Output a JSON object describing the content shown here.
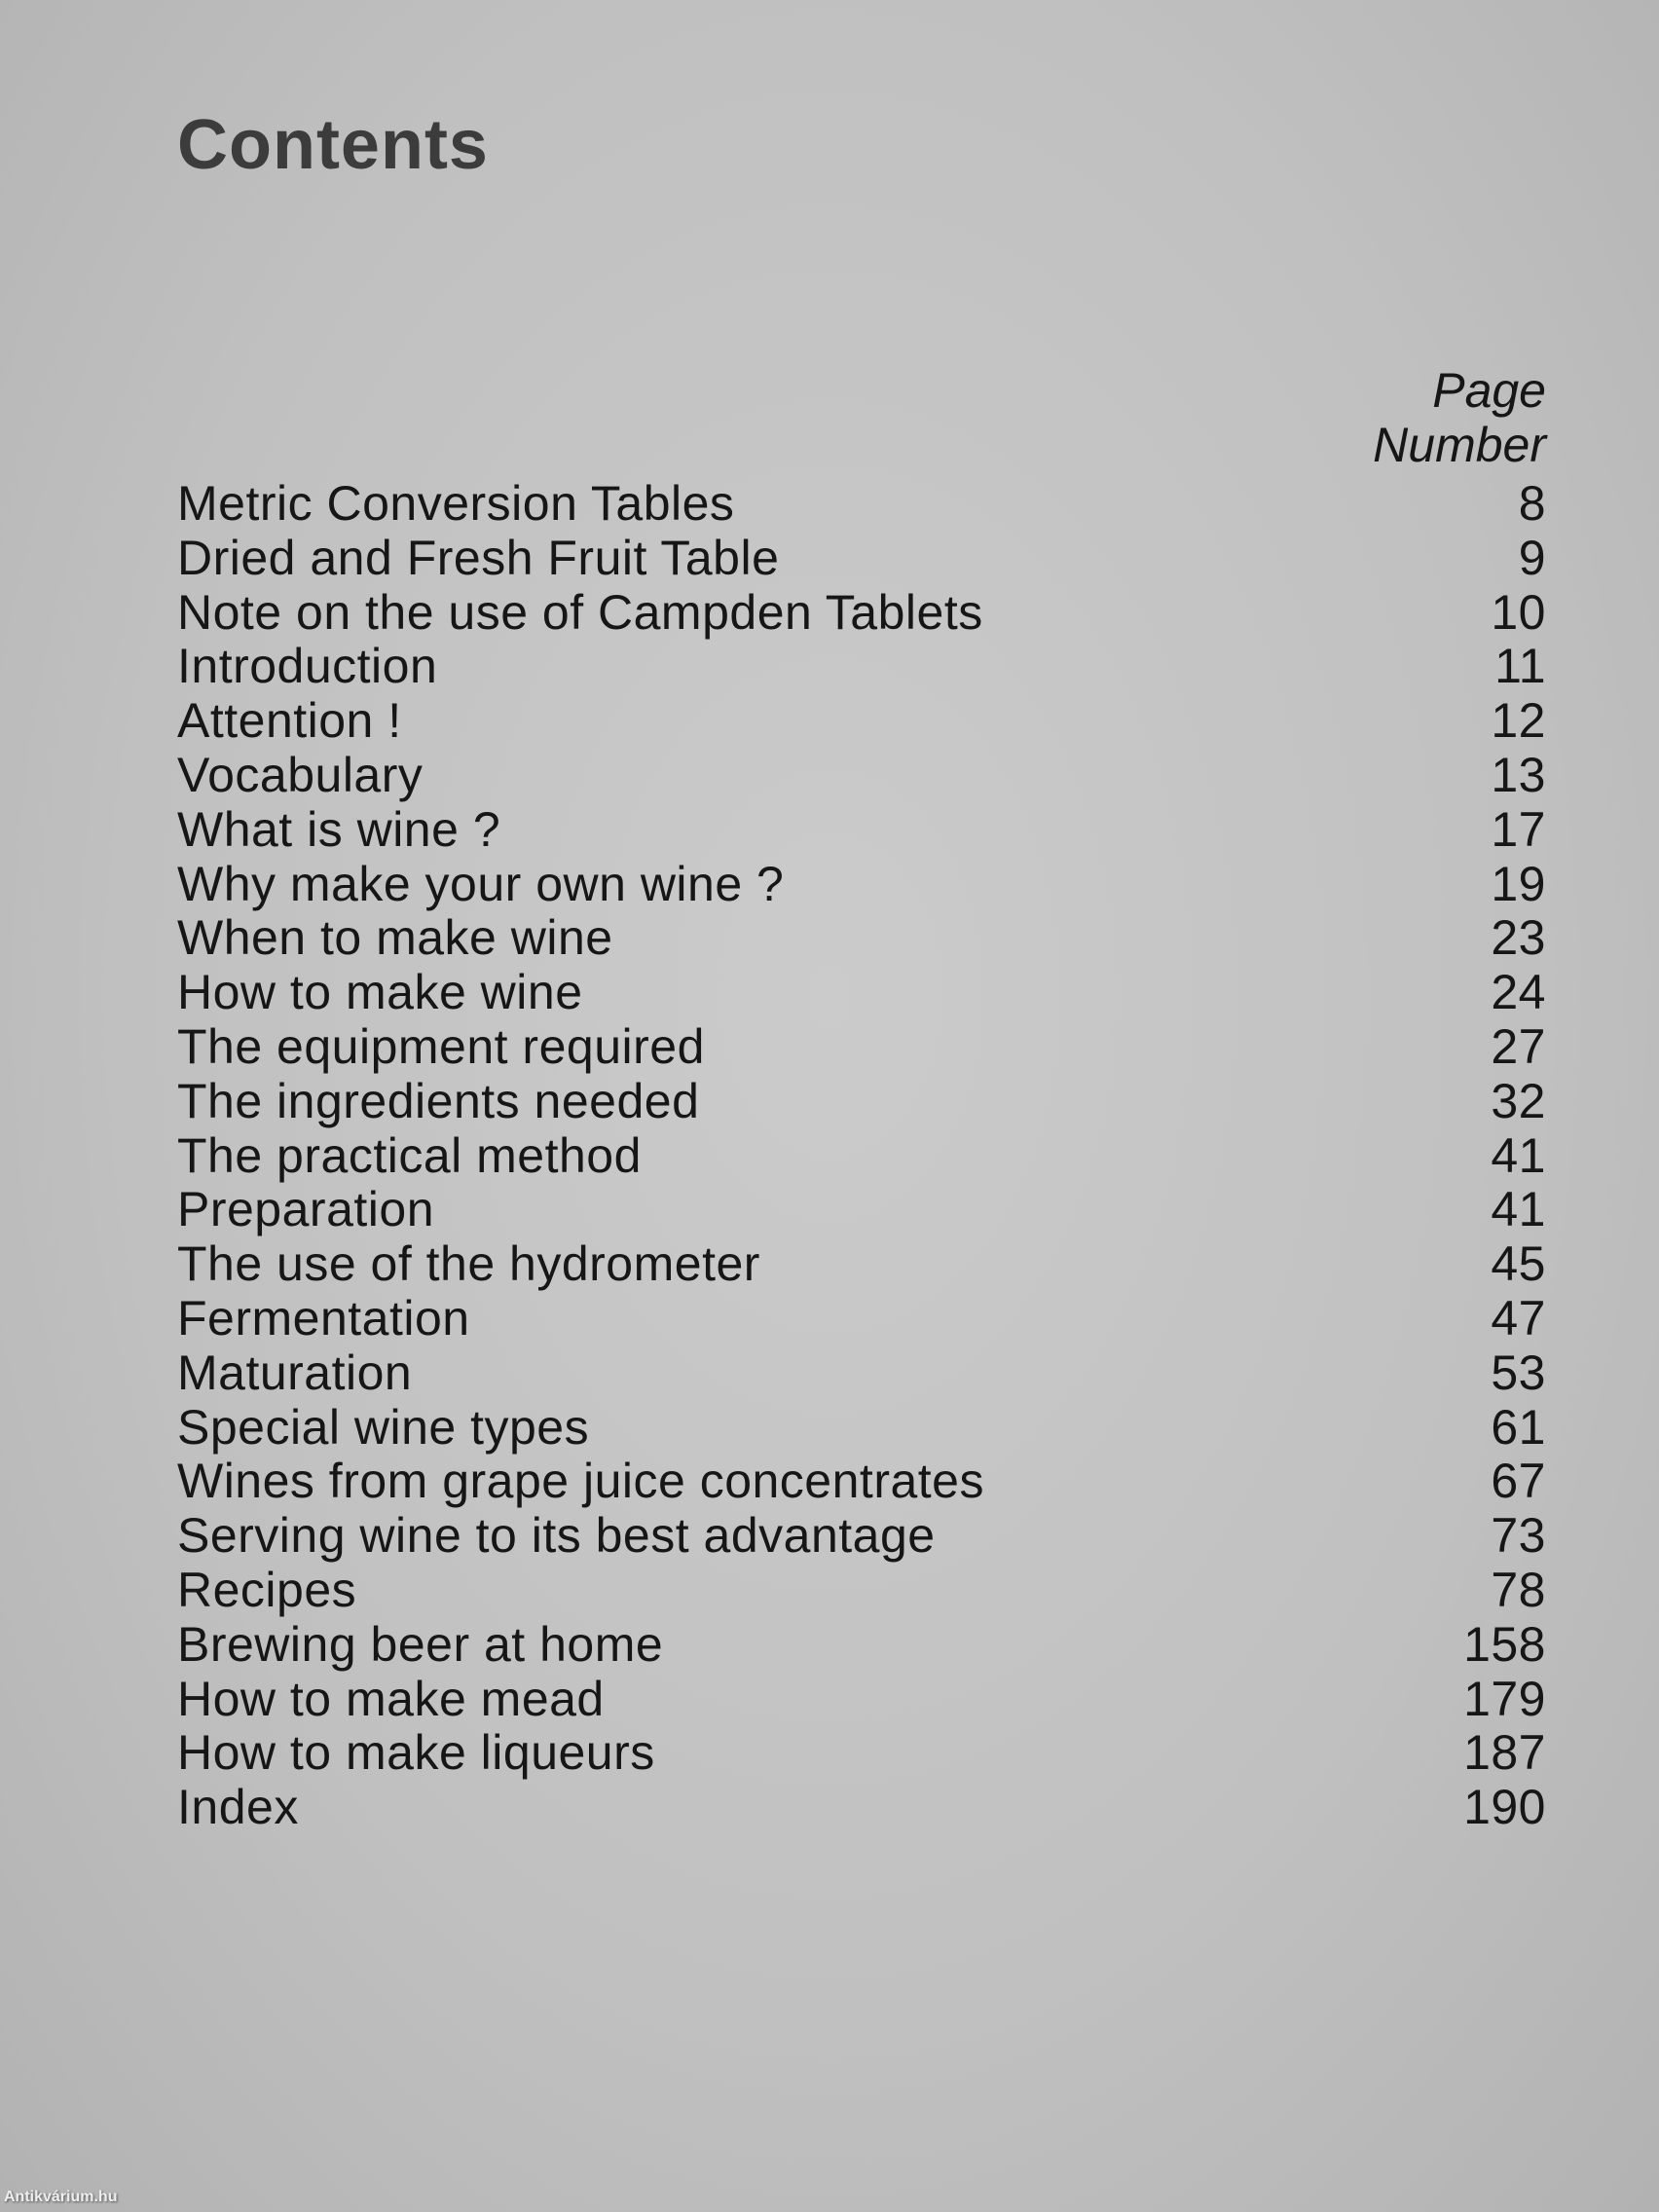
{
  "title": "Contents",
  "column_header": {
    "line1": "Page",
    "line2": "Number"
  },
  "entries": [
    {
      "title": "Metric Conversion Tables",
      "page": "8"
    },
    {
      "title": "Dried and Fresh Fruit Table",
      "page": "9"
    },
    {
      "title": "Note on the use of Campden Tablets",
      "page": "10"
    },
    {
      "title": "Introduction",
      "page": "11"
    },
    {
      "title": "Attention !",
      "page": "12"
    },
    {
      "title": "Vocabulary",
      "page": "13"
    },
    {
      "title": "What is wine ?",
      "page": "17"
    },
    {
      "title": "Why make your own wine ?",
      "page": "19"
    },
    {
      "title": "When to make wine",
      "page": "23"
    },
    {
      "title": "How to make wine",
      "page": "24"
    },
    {
      "title": "The equipment required",
      "page": "27"
    },
    {
      "title": "The ingredients needed",
      "page": "32"
    },
    {
      "title": "The practical method",
      "page": "41"
    },
    {
      "title": "Preparation",
      "page": "41"
    },
    {
      "title": "The use of the hydrometer",
      "page": "45"
    },
    {
      "title": "Fermentation",
      "page": "47"
    },
    {
      "title": "Maturation",
      "page": "53"
    },
    {
      "title": "Special wine types",
      "page": "61"
    },
    {
      "title": "Wines from grape juice concentrates",
      "page": "67"
    },
    {
      "title": "Serving wine to its best advantage",
      "page": "73"
    },
    {
      "title": "Recipes",
      "page": "78"
    },
    {
      "title": "Brewing beer at home",
      "page": "158"
    },
    {
      "title": "How to make mead",
      "page": "179"
    },
    {
      "title": "How to make liqueurs",
      "page": "187"
    },
    {
      "title": "Index",
      "page": "190"
    }
  ],
  "watermark": "Antikvárium.hu"
}
